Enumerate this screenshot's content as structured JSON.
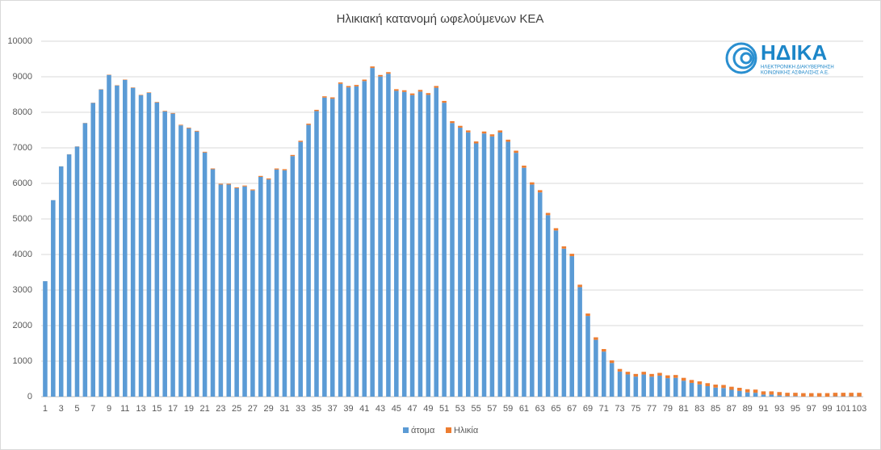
{
  "chart_data": {
    "type": "stacked-bar",
    "title": "Ηλικιακή κατανομή ωφελούμενων ΚΕΑ",
    "logo": {
      "name": "ΗΔΙΚΑ",
      "line1": "ΗΛΕΚΤΡΟΝΙΚΗ ΔΙΑΚΥΒΕΡΝΗΣΗ",
      "line2": "ΚΟΙΝΩΝΙΚΗΣ ΑΣΦΑΛΙΣΗΣ Α.Ε."
    },
    "categories": [
      1,
      null,
      3,
      null,
      5,
      null,
      7,
      null,
      9,
      null,
      11,
      null,
      13,
      null,
      15,
      null,
      17,
      null,
      19,
      null,
      21,
      null,
      23,
      null,
      25,
      null,
      27,
      null,
      29,
      null,
      31,
      null,
      33,
      null,
      35,
      null,
      37,
      null,
      39,
      null,
      41,
      null,
      43,
      null,
      45,
      null,
      47,
      null,
      49,
      null,
      51,
      null,
      53,
      null,
      55,
      null,
      57,
      null,
      59,
      null,
      61,
      null,
      63,
      null,
      65,
      null,
      67,
      null,
      69,
      null,
      71,
      null,
      73,
      null,
      75,
      null,
      77,
      null,
      79,
      null,
      81,
      null,
      83,
      null,
      85,
      null,
      87,
      null,
      89,
      null,
      91,
      null,
      93,
      null,
      95,
      null,
      97,
      null,
      99,
      null,
      101,
      null,
      103
    ],
    "series": [
      {
        "name": "άτομα",
        "color": "#5b9bd5",
        "values": [
          3249,
          5528,
          6477,
          6816,
          7035,
          7694,
          8263,
          8642,
          9051,
          8750,
          8909,
          8688,
          8477,
          8546,
          8275,
          8024,
          7963,
          7632,
          7551,
          7460,
          6869,
          6398,
          5967,
          5966,
          5865,
          5914,
          5803,
          6182,
          6111,
          6390,
          6369,
          6768,
          7167,
          7646,
          8035,
          8414,
          8383,
          8802,
          8701,
          8730,
          8879,
          9248,
          9007,
          9086,
          8605,
          8574,
          8483,
          8582,
          8491,
          8690,
          8269,
          7698,
          7567,
          7436,
          7125,
          7404,
          7323,
          7432,
          7171,
          6860,
          6439,
          5968,
          5747,
          5106,
          4675,
          4164,
          3953,
          3082,
          2271,
          1600,
          1269,
          948,
          707,
          626,
          565,
          624,
          563,
          592,
          521,
          530,
          449,
          388,
          347,
          296,
          255,
          244,
          193,
          162,
          121,
          110,
          59,
          58,
          37,
          16,
          15,
          4,
          3,
          2,
          1,
          10,
          9,
          8,
          7
        ]
      },
      {
        "name": "Ηλικία",
        "color": "#ed7d31",
        "values": [
          1,
          2,
          3,
          4,
          5,
          6,
          7,
          8,
          9,
          10,
          11,
          12,
          13,
          14,
          15,
          16,
          17,
          18,
          19,
          20,
          21,
          22,
          23,
          24,
          25,
          26,
          27,
          28,
          29,
          30,
          31,
          32,
          33,
          34,
          35,
          36,
          37,
          38,
          39,
          40,
          41,
          42,
          43,
          44,
          45,
          46,
          47,
          48,
          49,
          50,
          51,
          52,
          53,
          54,
          55,
          56,
          57,
          58,
          59,
          60,
          61,
          62,
          63,
          64,
          65,
          66,
          67,
          68,
          69,
          70,
          71,
          72,
          73,
          74,
          75,
          76,
          77,
          78,
          79,
          80,
          81,
          82,
          83,
          84,
          85,
          86,
          87,
          88,
          89,
          90,
          91,
          92,
          93,
          94,
          95,
          96,
          97,
          98,
          99,
          100,
          101,
          102,
          103
        ]
      }
    ],
    "ylim": [
      0,
      10000
    ],
    "yticks": [
      0,
      1000,
      2000,
      3000,
      4000,
      5000,
      6000,
      7000,
      8000,
      9000,
      10000
    ],
    "grid": true,
    "legend": "bottom"
  }
}
